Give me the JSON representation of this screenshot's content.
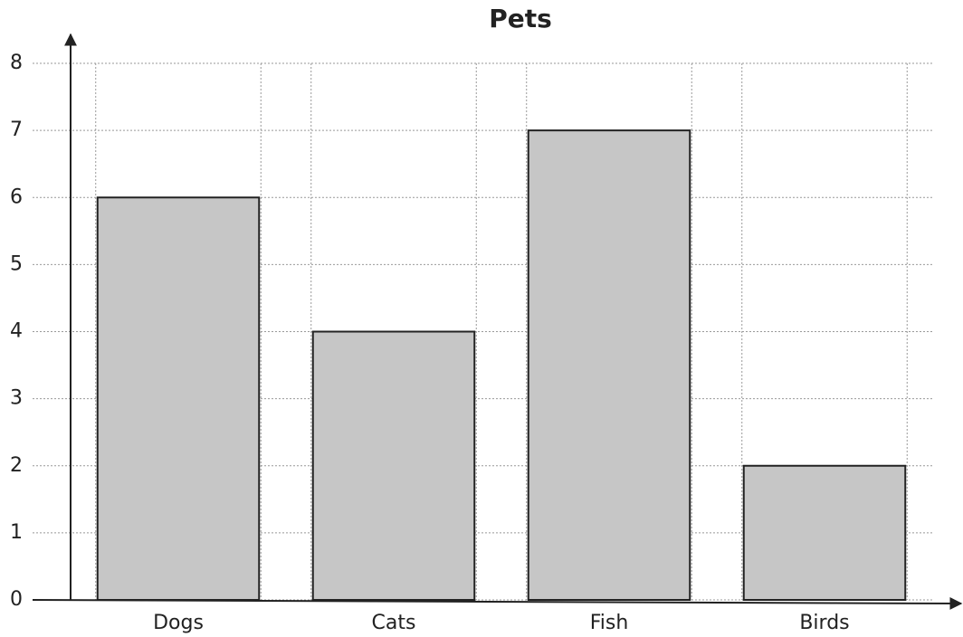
{
  "chart_data": {
    "type": "bar",
    "title": "Pets",
    "categories": [
      "Dogs",
      "Cats",
      "Fish",
      "Birds"
    ],
    "values": [
      6,
      4,
      7,
      2
    ],
    "color": "#c6c6c6",
    "ylim": [
      0,
      8
    ],
    "yticks": [
      0,
      1,
      2,
      3,
      4,
      5,
      6,
      7,
      8
    ],
    "grid": true
  }
}
